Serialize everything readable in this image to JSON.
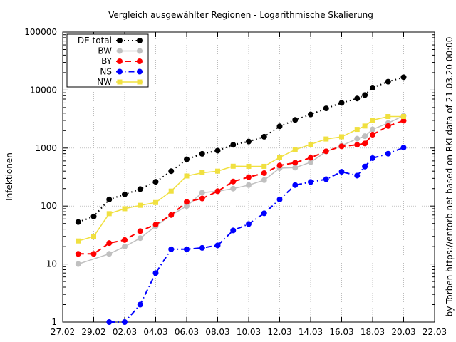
{
  "chart_data": {
    "type": "line",
    "title": "Vergleich ausgewählter Regionen - Logarithmische Skalierung",
    "ylabel": "Infektionen",
    "xlabel": "",
    "side_note": "by Torben https://entorb.net based on RKI data of 21.03.20 00:00",
    "y_scale": "log",
    "ylim": [
      1,
      100000
    ],
    "y_ticks": [
      1,
      10,
      100,
      1000,
      10000,
      100000
    ],
    "x_range": [
      "2020-02-27",
      "2020-03-22"
    ],
    "x_ticks": [
      "27.02",
      "29.02",
      "02.03",
      "04.03",
      "06.03",
      "08.03",
      "10.03",
      "12.03",
      "14.03",
      "16.03",
      "18.03",
      "20.03",
      "22.03"
    ],
    "legend_position": "top-left",
    "grid": true,
    "series": [
      {
        "name": "DE total",
        "color": "#000000",
        "marker": "circle",
        "line": "dotted",
        "points": [
          [
            "2020-02-28",
            53
          ],
          [
            "2020-02-29",
            66
          ],
          [
            "2020-03-01",
            130
          ],
          [
            "2020-03-02",
            159
          ],
          [
            "2020-03-03",
            196
          ],
          [
            "2020-03-04",
            262
          ],
          [
            "2020-03-05",
            400
          ],
          [
            "2020-03-06",
            639
          ],
          [
            "2020-03-07",
            795
          ],
          [
            "2020-03-08",
            902
          ],
          [
            "2020-03-09",
            1139
          ],
          [
            "2020-03-10",
            1296
          ],
          [
            "2020-03-11",
            1567
          ],
          [
            "2020-03-12",
            2369
          ],
          [
            "2020-03-13",
            3062
          ],
          [
            "2020-03-14",
            3795
          ],
          [
            "2020-03-15",
            4838
          ],
          [
            "2020-03-16",
            6012
          ],
          [
            "2020-03-17",
            7156
          ],
          [
            "2020-03-17T12",
            8198
          ],
          [
            "2020-03-18",
            10999
          ],
          [
            "2020-03-19",
            13957
          ],
          [
            "2020-03-20",
            16662
          ]
        ]
      },
      {
        "name": "BW",
        "color": "#c0c0c0",
        "marker": "circle",
        "line": "solid",
        "points": [
          [
            "2020-02-28",
            10
          ],
          [
            "2020-03-01",
            15
          ],
          [
            "2020-03-02",
            20
          ],
          [
            "2020-03-03",
            28
          ],
          [
            "2020-03-04",
            45
          ],
          [
            "2020-03-05",
            70
          ],
          [
            "2020-03-06",
            100
          ],
          [
            "2020-03-07",
            170
          ],
          [
            "2020-03-08",
            180
          ],
          [
            "2020-03-09",
            200
          ],
          [
            "2020-03-10",
            230
          ],
          [
            "2020-03-11",
            280
          ],
          [
            "2020-03-12",
            450
          ],
          [
            "2020-03-13",
            460
          ],
          [
            "2020-03-14",
            570
          ],
          [
            "2020-03-15",
            870
          ],
          [
            "2020-03-16",
            1100
          ],
          [
            "2020-03-17",
            1450
          ],
          [
            "2020-03-17T12",
            1600
          ],
          [
            "2020-03-18",
            2100
          ],
          [
            "2020-03-19",
            2700
          ],
          [
            "2020-03-20",
            3600
          ]
        ]
      },
      {
        "name": "BY",
        "color": "#ff0000",
        "marker": "circle",
        "line": "dashed",
        "points": [
          [
            "2020-02-28",
            15
          ],
          [
            "2020-02-29",
            15
          ],
          [
            "2020-03-01",
            23
          ],
          [
            "2020-03-02",
            26
          ],
          [
            "2020-03-03",
            37
          ],
          [
            "2020-03-04",
            48
          ],
          [
            "2020-03-05",
            70
          ],
          [
            "2020-03-06",
            118
          ],
          [
            "2020-03-07",
            135
          ],
          [
            "2020-03-08",
            180
          ],
          [
            "2020-03-09",
            265
          ],
          [
            "2020-03-10",
            315
          ],
          [
            "2020-03-11",
            370
          ],
          [
            "2020-03-12",
            500
          ],
          [
            "2020-03-13",
            560
          ],
          [
            "2020-03-14",
            680
          ],
          [
            "2020-03-15",
            880
          ],
          [
            "2020-03-16",
            1070
          ],
          [
            "2020-03-17",
            1140
          ],
          [
            "2020-03-17T12",
            1200
          ],
          [
            "2020-03-18",
            1700
          ],
          [
            "2020-03-19",
            2400
          ],
          [
            "2020-03-20",
            2960
          ]
        ]
      },
      {
        "name": "NS",
        "color": "#0000ff",
        "marker": "circle",
        "line": "dashdot",
        "points": [
          [
            "2020-03-01",
            1
          ],
          [
            "2020-03-02",
            1
          ],
          [
            "2020-03-03",
            2
          ],
          [
            "2020-03-04",
            7
          ],
          [
            "2020-03-05",
            18
          ],
          [
            "2020-03-06",
            18
          ],
          [
            "2020-03-07",
            19
          ],
          [
            "2020-03-08",
            21
          ],
          [
            "2020-03-09",
            38
          ],
          [
            "2020-03-10",
            49
          ],
          [
            "2020-03-11",
            75
          ],
          [
            "2020-03-12",
            130
          ],
          [
            "2020-03-13",
            230
          ],
          [
            "2020-03-14",
            260
          ],
          [
            "2020-03-15",
            290
          ],
          [
            "2020-03-16",
            390
          ],
          [
            "2020-03-17",
            335
          ],
          [
            "2020-03-17T12",
            480
          ],
          [
            "2020-03-18",
            670
          ],
          [
            "2020-03-19",
            800
          ],
          [
            "2020-03-20",
            1020
          ]
        ]
      },
      {
        "name": "NW",
        "color": "#f0e040",
        "marker": "square",
        "line": "solid",
        "points": [
          [
            "2020-02-28",
            25
          ],
          [
            "2020-02-29",
            30
          ],
          [
            "2020-03-01",
            74
          ],
          [
            "2020-03-02",
            90
          ],
          [
            "2020-03-03",
            103
          ],
          [
            "2020-03-04",
            115
          ],
          [
            "2020-03-05",
            181
          ],
          [
            "2020-03-06",
            330
          ],
          [
            "2020-03-07",
            375
          ],
          [
            "2020-03-08",
            400
          ],
          [
            "2020-03-09",
            486
          ],
          [
            "2020-03-10",
            484
          ],
          [
            "2020-03-11",
            484
          ],
          [
            "2020-03-12",
            688
          ],
          [
            "2020-03-13",
            936
          ],
          [
            "2020-03-14",
            1154
          ],
          [
            "2020-03-15",
            1433
          ],
          [
            "2020-03-16",
            1565
          ],
          [
            "2020-03-17",
            2100
          ],
          [
            "2020-03-17T12",
            2400
          ],
          [
            "2020-03-18",
            3030
          ],
          [
            "2020-03-19",
            3500
          ],
          [
            "2020-03-20",
            3500
          ]
        ]
      }
    ]
  }
}
